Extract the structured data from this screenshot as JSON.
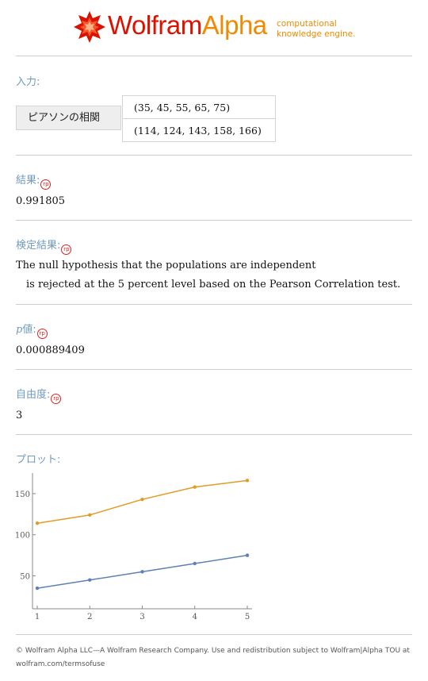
{
  "header": {
    "logo_text_1": "Wolfram",
    "logo_text_2": "Alpha",
    "tagline_line1": "computational",
    "tagline_line2": "knowledge engine."
  },
  "colors": {
    "label": "#6f9bc0",
    "badge": "#dd2222",
    "series1": "#5e81b5",
    "series2": "#e19c24",
    "brand_red": "#dd1100",
    "brand_orange": "#f18a00"
  },
  "input": {
    "label": "入力:",
    "function_name": "ピアソンの相関",
    "rows": [
      "(35, 45, 55, 65, 75)",
      "(114, 124, 143, 158, 166)"
    ]
  },
  "result": {
    "label": "結果:",
    "value": "0.991805"
  },
  "test": {
    "label": "検定結果:",
    "line1": "The null hypothesis that the populations are independent",
    "line2": "is rejected at the 5 percent level based on the Pearson Correlation test."
  },
  "pvalue": {
    "label_p": "p",
    "label_rest": "値:",
    "value": "0.000889409"
  },
  "dof": {
    "label": "自由度:",
    "value": "3"
  },
  "plot_section": {
    "label": "プロット:"
  },
  "badge_text": "rp",
  "chart_data": {
    "type": "line",
    "x": [
      1,
      2,
      3,
      4,
      5
    ],
    "series": [
      {
        "values": [
          35,
          45,
          55,
          65,
          75
        ],
        "color": "#5e81b5"
      },
      {
        "values": [
          114,
          124,
          143,
          158,
          166
        ],
        "color": "#e19c24"
      }
    ],
    "xlim": [
      1,
      5
    ],
    "ylim": [
      10,
      175
    ],
    "xticks": [
      1,
      2,
      3,
      4,
      5
    ],
    "yticks": [
      50,
      100,
      150
    ]
  },
  "footer": {
    "line1": "© Wolfram Alpha LLC—A Wolfram Research Company. Use and redistribution subject to Wolfram|Alpha TOU at",
    "line2": "wolfram.com/termsofuse"
  }
}
